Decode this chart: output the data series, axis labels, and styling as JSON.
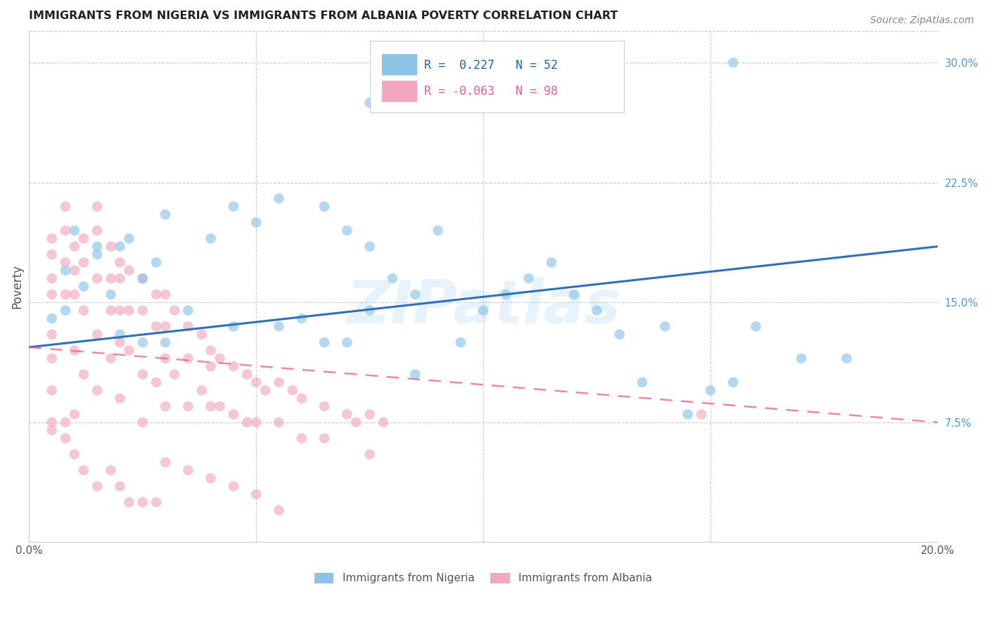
{
  "title": "IMMIGRANTS FROM NIGERIA VS IMMIGRANTS FROM ALBANIA POVERTY CORRELATION CHART",
  "source": "Source: ZipAtlas.com",
  "ylabel": "Poverty",
  "xlim": [
    0.0,
    0.2
  ],
  "ylim": [
    0.0,
    0.32
  ],
  "nigeria_R": 0.227,
  "nigeria_N": 52,
  "albania_R": -0.063,
  "albania_N": 98,
  "nigeria_color": "#8cc4e8",
  "albania_color": "#f4a8c0",
  "nigeria_line_color": "#3070b8",
  "albania_line_color": "#e06090",
  "watermark": "ZIPatlas",
  "background": "#ffffff",
  "grid_color": "#cccccc",
  "nigeria_line_y0": 0.122,
  "nigeria_line_y1": 0.185,
  "albania_line_y0": 0.122,
  "albania_line_y1": 0.075,
  "nigeria_scatter_x": [
    0.005,
    0.008,
    0.01,
    0.012,
    0.015,
    0.018,
    0.02,
    0.022,
    0.025,
    0.028,
    0.03,
    0.04,
    0.045,
    0.05,
    0.055,
    0.065,
    0.07,
    0.075,
    0.08,
    0.085,
    0.09,
    0.1,
    0.11,
    0.12,
    0.13,
    0.14,
    0.15,
    0.16,
    0.17,
    0.18,
    0.008,
    0.015,
    0.02,
    0.025,
    0.03,
    0.035,
    0.045,
    0.055,
    0.065,
    0.075,
    0.085,
    0.095,
    0.105,
    0.115,
    0.125,
    0.135,
    0.145,
    0.155,
    0.06,
    0.07,
    0.075,
    0.155
  ],
  "nigeria_scatter_y": [
    0.14,
    0.17,
    0.195,
    0.16,
    0.18,
    0.155,
    0.185,
    0.19,
    0.165,
    0.175,
    0.205,
    0.19,
    0.21,
    0.2,
    0.215,
    0.21,
    0.195,
    0.185,
    0.165,
    0.155,
    0.195,
    0.145,
    0.165,
    0.155,
    0.13,
    0.135,
    0.095,
    0.135,
    0.115,
    0.115,
    0.145,
    0.185,
    0.13,
    0.125,
    0.125,
    0.145,
    0.135,
    0.135,
    0.125,
    0.145,
    0.105,
    0.125,
    0.155,
    0.175,
    0.145,
    0.1,
    0.08,
    0.1,
    0.14,
    0.125,
    0.275,
    0.3
  ],
  "albania_scatter_x": [
    0.005,
    0.005,
    0.005,
    0.005,
    0.005,
    0.005,
    0.005,
    0.005,
    0.008,
    0.008,
    0.008,
    0.008,
    0.008,
    0.01,
    0.01,
    0.01,
    0.01,
    0.01,
    0.012,
    0.012,
    0.012,
    0.012,
    0.015,
    0.015,
    0.015,
    0.015,
    0.015,
    0.018,
    0.018,
    0.018,
    0.018,
    0.02,
    0.02,
    0.02,
    0.02,
    0.02,
    0.022,
    0.022,
    0.022,
    0.025,
    0.025,
    0.025,
    0.025,
    0.028,
    0.028,
    0.028,
    0.03,
    0.03,
    0.03,
    0.03,
    0.032,
    0.032,
    0.035,
    0.035,
    0.035,
    0.038,
    0.038,
    0.04,
    0.04,
    0.04,
    0.042,
    0.042,
    0.045,
    0.045,
    0.048,
    0.048,
    0.05,
    0.05,
    0.052,
    0.055,
    0.055,
    0.058,
    0.06,
    0.06,
    0.065,
    0.065,
    0.07,
    0.072,
    0.075,
    0.075,
    0.078,
    0.005,
    0.008,
    0.01,
    0.012,
    0.015,
    0.018,
    0.02,
    0.022,
    0.025,
    0.028,
    0.03,
    0.035,
    0.04,
    0.045,
    0.05,
    0.055,
    0.148
  ],
  "albania_scatter_y": [
    0.19,
    0.18,
    0.165,
    0.155,
    0.13,
    0.115,
    0.095,
    0.07,
    0.21,
    0.195,
    0.175,
    0.155,
    0.075,
    0.185,
    0.17,
    0.155,
    0.12,
    0.08,
    0.19,
    0.175,
    0.145,
    0.105,
    0.21,
    0.195,
    0.165,
    0.13,
    0.095,
    0.185,
    0.165,
    0.145,
    0.115,
    0.175,
    0.165,
    0.145,
    0.125,
    0.09,
    0.17,
    0.145,
    0.12,
    0.165,
    0.145,
    0.105,
    0.075,
    0.155,
    0.135,
    0.1,
    0.155,
    0.135,
    0.115,
    0.085,
    0.145,
    0.105,
    0.135,
    0.115,
    0.085,
    0.13,
    0.095,
    0.12,
    0.11,
    0.085,
    0.115,
    0.085,
    0.11,
    0.08,
    0.105,
    0.075,
    0.1,
    0.075,
    0.095,
    0.1,
    0.075,
    0.095,
    0.09,
    0.065,
    0.085,
    0.065,
    0.08,
    0.075,
    0.08,
    0.055,
    0.075,
    0.075,
    0.065,
    0.055,
    0.045,
    0.035,
    0.045,
    0.035,
    0.025,
    0.025,
    0.025,
    0.05,
    0.045,
    0.04,
    0.035,
    0.03,
    0.02,
    0.08
  ]
}
